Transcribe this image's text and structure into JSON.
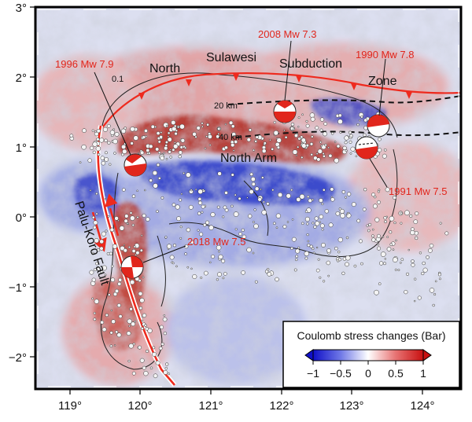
{
  "axes": {
    "x_ticks": [
      "119°",
      "120°",
      "121°",
      "122°",
      "123°",
      "124°"
    ],
    "y_ticks": [
      "3°",
      "2°",
      "1°",
      "0°",
      "−1°",
      "−2°"
    ]
  },
  "earthquakes": [
    {
      "label": "1996 Mw 7.9"
    },
    {
      "label": "2008 Mw 7.3"
    },
    {
      "label": "1990 Mw 7.8"
    },
    {
      "label": "1991 Mw 7.5"
    },
    {
      "label": "2018 Mw 7.5"
    }
  ],
  "place_labels": {
    "north": "North",
    "sulawesi": "Sulawesi",
    "subduction": "Subduction",
    "zone": "Zone",
    "north_arm": "North Arm",
    "fault": "Palu-Koro Fault"
  },
  "contour_labels": {
    "c01": "0.1",
    "d20": "20 km",
    "d40": "40 km"
  },
  "legend": {
    "title": "Coulomb stress changes (Bar)",
    "ticks": [
      "−1",
      "−0.5",
      "0",
      "0.5",
      "1"
    ],
    "colors": {
      "min": "#1a1ad6",
      "mid": "#ffffff",
      "max": "#d01818"
    }
  },
  "colors": {
    "positive": "#c0392b",
    "negative": "#2233cc",
    "fault": "#ee2a1e",
    "beachball_red": "#e1261c"
  }
}
